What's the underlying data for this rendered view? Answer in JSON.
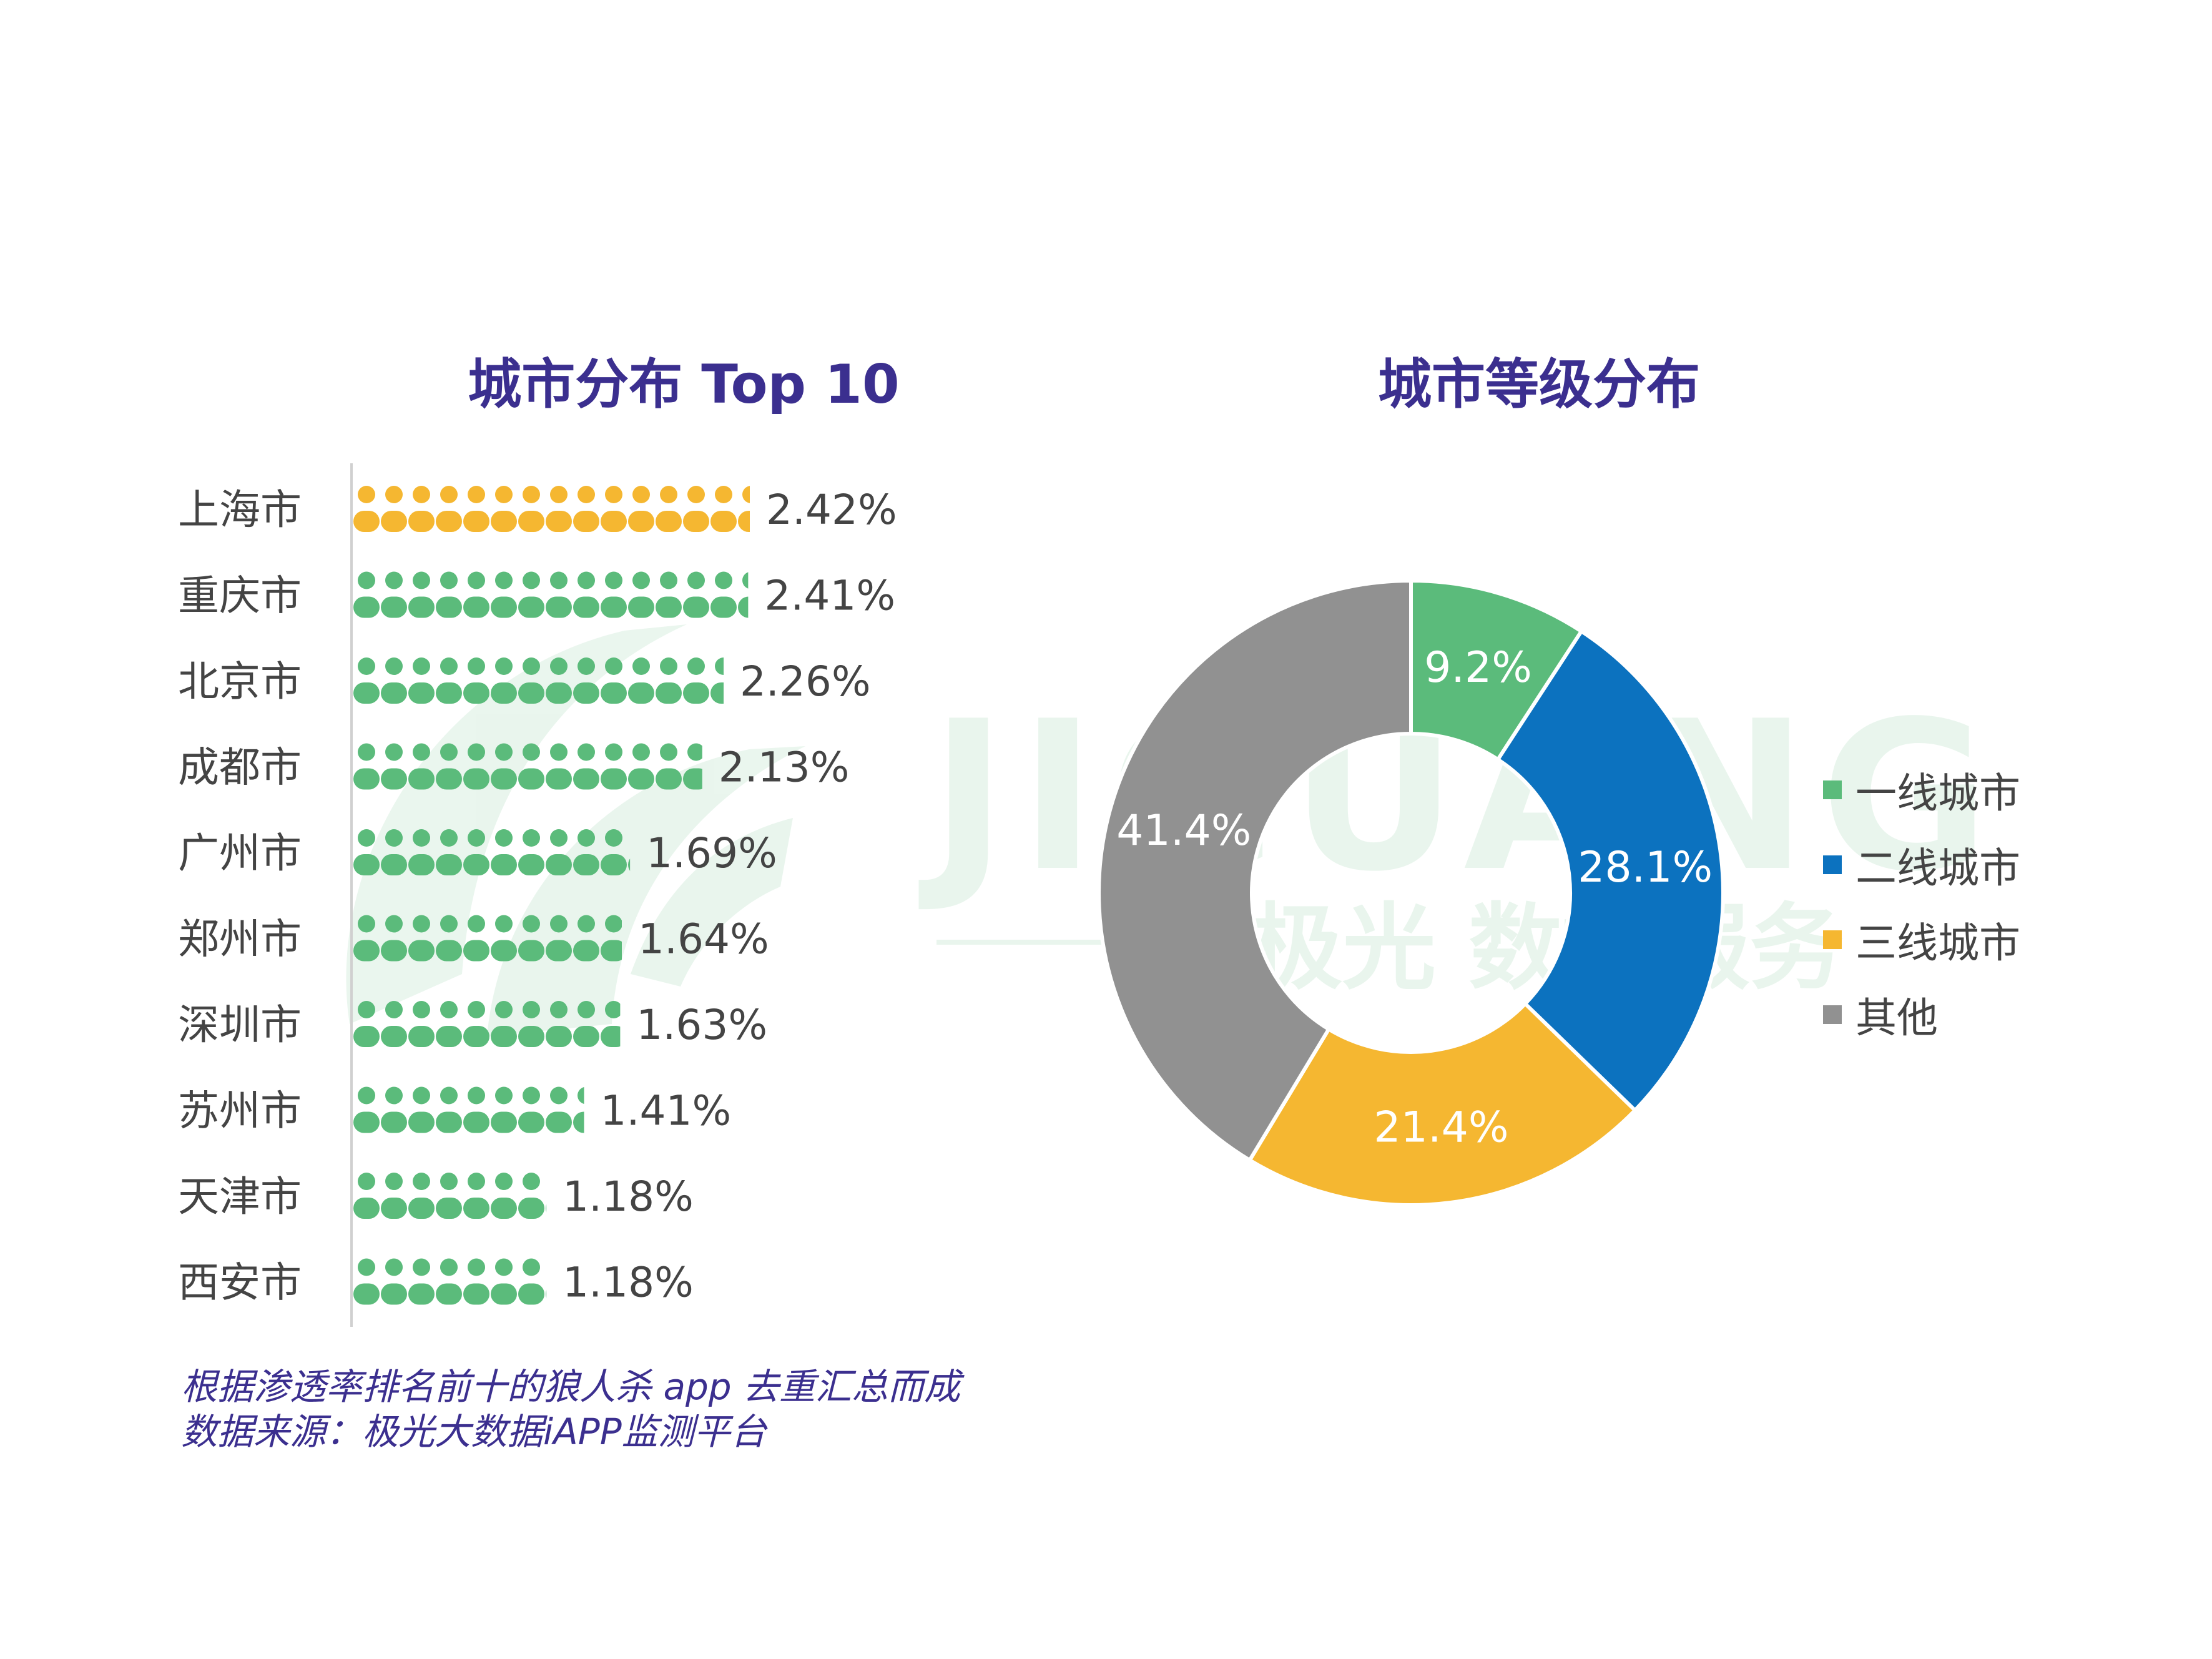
{
  "titles": {
    "left": "城市分布 Top 10",
    "right": "城市等级分布"
  },
  "watermark": {
    "brand": "JIGUANG",
    "subtitle": "极光 数据服务",
    "color": "#5bbb7b"
  },
  "colors": {
    "title": "#3b2f8f",
    "bar_top": "#f5b731",
    "bar_default": "#5bbb7b",
    "label": "#444444",
    "footnote": "#3b2f8f"
  },
  "icons": {
    "bar_unit": "person-icon"
  },
  "chart_data": [
    {
      "type": "bar",
      "title": "城市分布 Top 10",
      "orientation": "horizontal",
      "categories": [
        "上海市",
        "重庆市",
        "北京市",
        "成都市",
        "广州市",
        "郑州市",
        "深圳市",
        "苏州市",
        "天津市",
        "西安市"
      ],
      "values": [
        2.42,
        2.41,
        2.26,
        2.13,
        1.69,
        1.64,
        1.63,
        1.41,
        1.18,
        1.18
      ],
      "labels": [
        "2.42%",
        "2.41%",
        "2.26%",
        "2.13%",
        "1.69%",
        "1.64%",
        "1.63%",
        "1.41%",
        "1.18%",
        "1.18%"
      ],
      "unit": "%",
      "highlight_index": 0,
      "xlim": [
        0,
        2.42
      ]
    },
    {
      "type": "pie",
      "title": "城市等级分布",
      "donut": true,
      "categories": [
        "一线城市",
        "二线城市",
        "三线城市",
        "其他"
      ],
      "values": [
        9.2,
        28.1,
        21.4,
        41.4
      ],
      "labels": [
        "9.2%",
        "28.1%",
        "21.4%",
        "41.4%"
      ],
      "colors": [
        "#5bbb7b",
        "#0c72bf",
        "#f5b731",
        "#919191"
      ],
      "legend_position": "right"
    }
  ],
  "footnote": {
    "line1": "根据渗透率排名前十的狼人杀 app 去重汇总而成",
    "line2": "数据来源：极光大数据iAPP监测平台"
  }
}
